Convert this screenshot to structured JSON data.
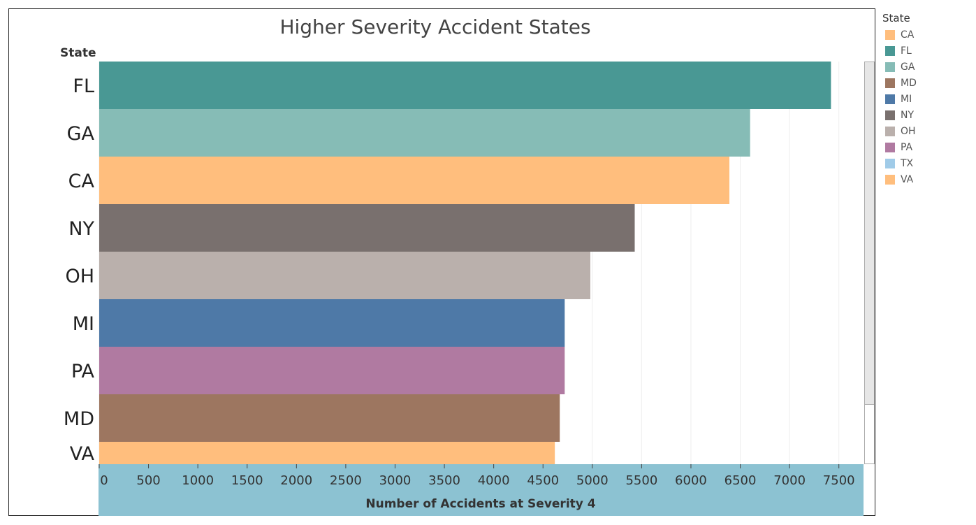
{
  "chart_data": {
    "type": "bar",
    "orientation": "horizontal",
    "title": "Higher Severity Accident States",
    "ylabel": "State",
    "xlabel": "Number of Accidents at Severity 4",
    "categories": [
      "FL",
      "GA",
      "CA",
      "NY",
      "OH",
      "MI",
      "PA",
      "MD",
      "VA"
    ],
    "values": [
      7420,
      6600,
      6390,
      5430,
      4980,
      4720,
      4720,
      4670,
      4620
    ],
    "xlim": [
      0,
      7750
    ],
    "xticks": [
      0,
      500,
      1000,
      1500,
      2000,
      2500,
      3000,
      3500,
      4000,
      4500,
      5000,
      5500,
      6000,
      6500,
      7000,
      7500
    ],
    "grid": "vertical",
    "legend_placement": "right",
    "colors": {
      "CA": "#FFBE7D",
      "FL": "#499894",
      "GA": "#86BCB6",
      "MD": "#9D7660",
      "MI": "#4E79A7",
      "NY": "#79706E",
      "OH": "#BAB0AC",
      "PA": "#B07AA1",
      "TX": "#A0CBE8",
      "VA": "#FFBE7D"
    },
    "axis_band_color": "#8CC2D2"
  },
  "legend": {
    "title": "State",
    "items": [
      {
        "label": "CA",
        "color": "#FFBE7D"
      },
      {
        "label": "FL",
        "color": "#499894"
      },
      {
        "label": "GA",
        "color": "#86BCB6"
      },
      {
        "label": "MD",
        "color": "#9D7660"
      },
      {
        "label": "MI",
        "color": "#4E79A7"
      },
      {
        "label": "NY",
        "color": "#79706E"
      },
      {
        "label": "OH",
        "color": "#BAB0AC"
      },
      {
        "label": "PA",
        "color": "#B07AA1"
      },
      {
        "label": "TX",
        "color": "#A0CBE8"
      },
      {
        "label": "VA",
        "color": "#FFBE7D"
      }
    ]
  }
}
